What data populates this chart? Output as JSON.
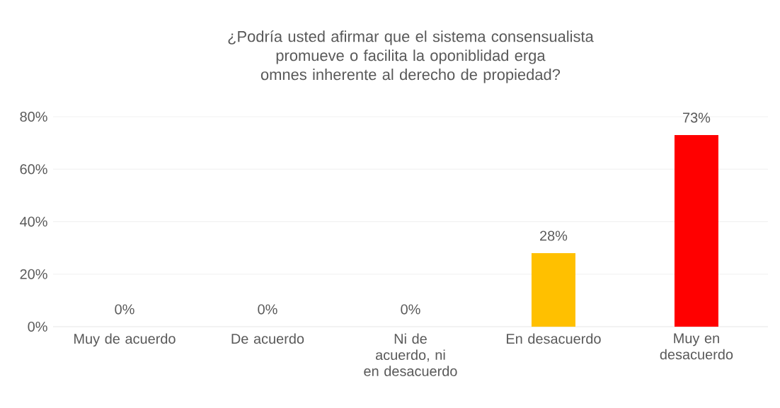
{
  "chart_data": {
    "type": "bar",
    "title": "¿Podría usted afirmar que el sistema consensualista promueve o facilita la oponiblidad erga omnes inherente al derecho de propiedad?",
    "categories": [
      "Muy de acuerdo",
      "De acuerdo",
      "Ni de acuerdo, ni en desacuerdo",
      "En desacuerdo",
      "Muy en desacuerdo"
    ],
    "values": [
      0,
      0,
      0,
      28,
      73
    ],
    "value_labels": [
      "0%",
      "0%",
      "0%",
      "28%",
      "73%"
    ],
    "colors": [
      "#4472c4",
      "#ed7d31",
      "#a5a5a5",
      "#ffc000",
      "#ff0000"
    ],
    "ylim": [
      0,
      80
    ],
    "yticks": [
      {
        "value": 0,
        "label": "0%"
      },
      {
        "value": 20,
        "label": "20%"
      },
      {
        "value": 40,
        "label": "40%"
      },
      {
        "value": 60,
        "label": "60%"
      },
      {
        "value": 80,
        "label": "80%"
      }
    ],
    "grid": "y"
  }
}
